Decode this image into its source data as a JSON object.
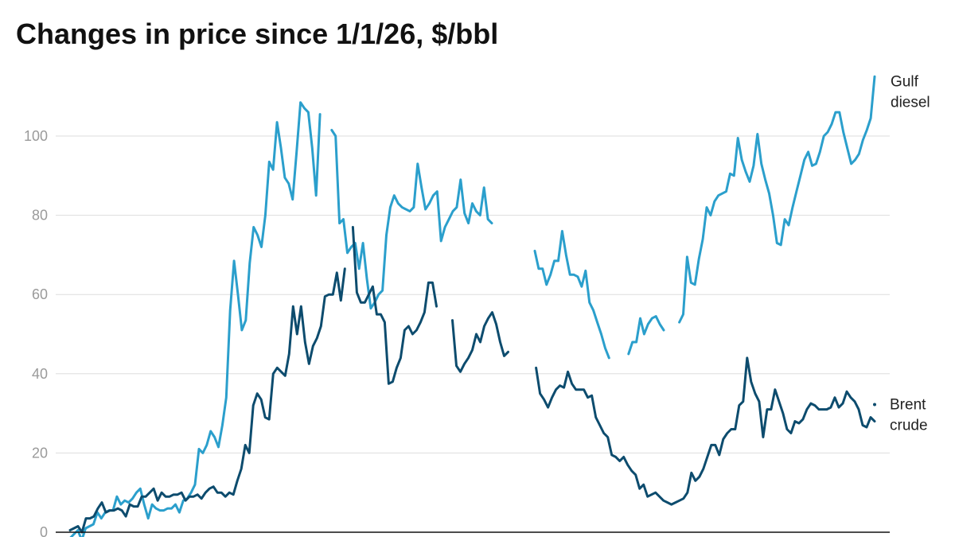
{
  "chart_data": {
    "type": "line",
    "title": "Changes in price since 1/1/26, $/bbl",
    "xlabel": "",
    "ylabel": "",
    "ylim": [
      0,
      120
    ],
    "yticks": [
      0,
      20,
      40,
      60,
      80,
      100
    ],
    "grid": true,
    "legend": "inline labels at line ends",
    "series": [
      {
        "name": "Gulf diesel",
        "label_lines": [
          "Gulf",
          "diesel"
        ],
        "color": "#2b9fcc",
        "values": [
          -1.5,
          -0.5,
          0.5,
          -2,
          1,
          1.5,
          2,
          5,
          3.5,
          5,
          5.5,
          5.5,
          9,
          7,
          8,
          7.5,
          8.5,
          10,
          11,
          7,
          3.5,
          7,
          6,
          5.5,
          5.5,
          6,
          6,
          7,
          5,
          8,
          8.5,
          10,
          12,
          21,
          20,
          22,
          25.5,
          24,
          21.5,
          27,
          34,
          56,
          68.5,
          60,
          51,
          53.5,
          68,
          77,
          75,
          72,
          80,
          93.5,
          91.5,
          103.5,
          97,
          89.5,
          88,
          84,
          96,
          108.5,
          107,
          106,
          97,
          85,
          105.5,
          null,
          null,
          101.5,
          100,
          78,
          79,
          70.5,
          72,
          73,
          66.5,
          73,
          64,
          56.5,
          58,
          60,
          61,
          75,
          82,
          85,
          83,
          82,
          81.5,
          81,
          82,
          93,
          87,
          81.5,
          83,
          85,
          86,
          73.5,
          77,
          79,
          81,
          82,
          89,
          80.5,
          78,
          83,
          81,
          80,
          87,
          79,
          78,
          null,
          null,
          null,
          null,
          null,
          null,
          null,
          null,
          null,
          null,
          71,
          66.5,
          66.5,
          62.5,
          65,
          68.5,
          68.5,
          76,
          70,
          65,
          65,
          64.5,
          62,
          66,
          58,
          56,
          53,
          50,
          46.5,
          44,
          null,
          null,
          null,
          null,
          45,
          48,
          48,
          54,
          50,
          52.5,
          54,
          54.5,
          52.5,
          51,
          null,
          null,
          null,
          53,
          55,
          69.5,
          63,
          62.5,
          69,
          74,
          82,
          80,
          83.5,
          85,
          85.5,
          86,
          90.5,
          90,
          99.5,
          94,
          91,
          88.5,
          92.5,
          100.5,
          93,
          89,
          85.5,
          80,
          73,
          72.5,
          79,
          77.5,
          82,
          86,
          90,
          94,
          96,
          92.5,
          93,
          96,
          100,
          101,
          103,
          106,
          106,
          101,
          97,
          93,
          94,
          95.5,
          99,
          101.5,
          104.5,
          115
        ]
      },
      {
        "name": "Brent crude",
        "label_lines": [
          "Brent",
          "crude"
        ],
        "color": "#0d4c6e",
        "values": [
          0.5,
          1,
          1.5,
          0,
          3.5,
          3.5,
          4,
          6,
          7.5,
          5,
          5.5,
          5.5,
          6,
          5.5,
          4,
          7,
          6.5,
          6.5,
          9,
          9,
          10,
          11,
          8,
          10,
          9,
          9,
          9.5,
          9.5,
          10,
          8,
          9,
          9,
          9.5,
          8.5,
          10,
          11,
          11.5,
          10,
          10,
          9,
          10,
          9.5,
          13,
          16,
          22,
          20,
          32,
          35,
          33.5,
          29,
          28.5,
          40,
          41.5,
          40.5,
          39.5,
          45,
          57,
          50,
          57,
          48,
          42.5,
          47,
          49,
          52,
          59.5,
          60,
          60,
          65.5,
          58.5,
          66.5,
          null,
          77,
          60.5,
          58,
          58,
          60,
          62,
          55,
          55,
          53,
          37.5,
          38,
          41.5,
          44,
          51,
          52,
          50,
          51,
          53,
          55.5,
          63,
          63,
          57,
          null,
          null,
          null,
          53.5,
          42,
          40.5,
          42.5,
          44,
          46,
          50,
          48,
          52,
          54,
          55.5,
          52.5,
          48,
          44.5,
          45.5,
          null,
          null,
          null,
          null,
          null,
          null,
          41.5,
          35,
          33.5,
          31.5,
          34,
          36,
          37,
          36.5,
          40.5,
          37.5,
          36,
          36,
          36,
          34,
          34.5,
          29,
          27,
          25,
          24,
          19.5,
          19,
          18,
          19,
          17,
          15.5,
          14.5,
          11,
          12,
          9,
          9.5,
          10,
          9,
          8,
          7.5,
          7,
          7.5,
          8,
          8.5,
          10,
          15,
          13,
          14,
          16,
          19,
          22,
          22,
          19.5,
          23.5,
          25,
          26,
          26,
          32,
          33,
          44,
          38,
          35,
          33,
          24,
          31,
          31,
          36,
          33,
          30,
          26,
          25,
          28,
          27.5,
          28.5,
          31,
          32.5,
          32,
          31,
          31,
          31,
          31.5,
          34,
          31.5,
          32.5,
          35.5,
          34,
          33,
          31,
          27,
          26.5,
          29,
          28
        ]
      }
    ]
  }
}
